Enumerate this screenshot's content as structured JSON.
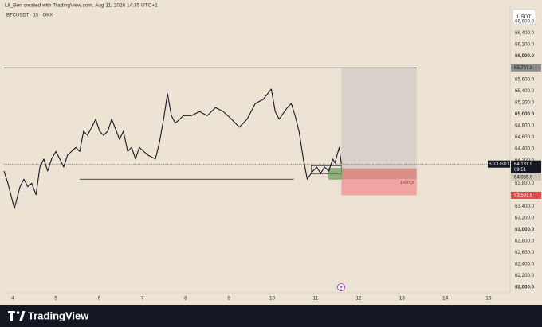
{
  "header": {
    "attribution": "Lil_Ben created with TradingView.com, Aug 11, 2026 14:35 UTC+1"
  },
  "footer": {
    "brand": "TradingView"
  },
  "chart_data": {
    "type": "line",
    "title": "BTCUSDT · 15 · OKX",
    "currency": "USDT",
    "background": "#ece3d5",
    "grid": false,
    "x": [
      3.8,
      3.89,
      4.04,
      4.17,
      4.26,
      4.35,
      4.44,
      4.54,
      4.63,
      4.72,
      4.81,
      4.9,
      5.0,
      5.09,
      5.18,
      5.27,
      5.36,
      5.46,
      5.55,
      5.64,
      5.73,
      5.83,
      5.92,
      6.01,
      6.1,
      6.2,
      6.29,
      6.47,
      6.56,
      6.66,
      6.75,
      6.84,
      6.93,
      7.12,
      7.3,
      7.39,
      7.49,
      7.58,
      7.67,
      7.76,
      7.95,
      8.13,
      8.32,
      8.5,
      8.69,
      8.87,
      9.06,
      9.24,
      9.42,
      9.61,
      9.79,
      9.98,
      10.07,
      10.16,
      10.35,
      10.44,
      10.53,
      10.62,
      10.72,
      10.81,
      10.94,
      11.03,
      11.12,
      11.21,
      11.31,
      11.4,
      11.45,
      11.55,
      11.6
    ],
    "series": [
      {
        "name": "BTCUSDT",
        "color": "#131722",
        "values": [
          64010,
          63800,
          63360,
          63740,
          63870,
          63740,
          63800,
          63600,
          64080,
          64220,
          64010,
          64220,
          64350,
          64220,
          64080,
          64290,
          64350,
          64420,
          64350,
          64700,
          64630,
          64770,
          64910,
          64700,
          64630,
          64700,
          64910,
          64560,
          64700,
          64350,
          64420,
          64220,
          64420,
          64290,
          64220,
          64490,
          64910,
          65350,
          64970,
          64840,
          64970,
          64970,
          65040,
          64970,
          65110,
          65040,
          64910,
          64770,
          64910,
          65180,
          65250,
          65430,
          65040,
          64910,
          65110,
          65180,
          64970,
          64700,
          64220,
          63870,
          64010,
          64080,
          63970,
          64080,
          64010,
          64220,
          64150,
          64420,
          64131.9
        ]
      }
    ],
    "last_price": {
      "value": 64131.9,
      "label": "64,131.9"
    },
    "countdown": "09:51",
    "position": {
      "target": {
        "value": 65797.8,
        "label": "65,797.8"
      },
      "entry": {
        "value": 64055.9,
        "label": "64,055.9"
      },
      "stop": {
        "value": 63591.6,
        "label": "63,591.6"
      },
      "x_start": 11.6,
      "x_end": 13.34,
      "profit_color": "#d7d1c9",
      "loss_color": "#f0a5a2"
    },
    "zone": {
      "label": "1H POI",
      "low": 63870,
      "high": 64055.9,
      "x_start": 11.31,
      "x_end": 13.34,
      "color": "#b06a55"
    },
    "support_line": {
      "value": 63870,
      "x_start": 5.55,
      "x_end": 10.5
    },
    "boxes": [
      {
        "low": 63960,
        "high": 64100,
        "x_start": 10.9,
        "x_end": 11.6,
        "color": "#333333"
      },
      {
        "low": 63870,
        "high": 64055.9,
        "x_start": 11.31,
        "x_end": 11.6,
        "color": "#5aa35a"
      }
    ],
    "xlim": [
      3.8,
      15.5
    ],
    "xticks": [
      4,
      5,
      6,
      7,
      8,
      9,
      10,
      11,
      12,
      13,
      14,
      15
    ],
    "ylim": [
      61986,
      66862
    ],
    "yticks": [
      {
        "value": 66600,
        "label": "66,600.0"
      },
      {
        "value": 66400,
        "label": "66,400.0"
      },
      {
        "value": 66200,
        "label": "66,200.0"
      },
      {
        "value": 66000,
        "label": "66,000.0"
      },
      {
        "value": 65800,
        "label": "65,800.0"
      },
      {
        "value": 65600,
        "label": "65,600.0"
      },
      {
        "value": 65400,
        "label": "65,400.0"
      },
      {
        "value": 65200,
        "label": "65,200.0"
      },
      {
        "value": 65000,
        "label": "65,000.0"
      },
      {
        "value": 64800,
        "label": "64,800.0"
      },
      {
        "value": 64600,
        "label": "64,600.0"
      },
      {
        "value": 64400,
        "label": "64,400.0"
      },
      {
        "value": 64200,
        "label": "64,200.0"
      },
      {
        "value": 64000,
        "label": "64,000.0"
      },
      {
        "value": 63800,
        "label": "63,800.0"
      },
      {
        "value": 63600,
        "label": "63,600.0"
      },
      {
        "value": 63400,
        "label": "63,400.0"
      },
      {
        "value": 63200,
        "label": "63,200.0"
      },
      {
        "value": 63000,
        "label": "63,000.0"
      },
      {
        "value": 62800,
        "label": "62,800.0"
      },
      {
        "value": 62600,
        "label": "62,600.0"
      },
      {
        "value": 62400,
        "label": "62,400.0"
      },
      {
        "value": 62200,
        "label": "62,200.0"
      },
      {
        "value": 62000,
        "label": "62,000.0"
      }
    ]
  }
}
